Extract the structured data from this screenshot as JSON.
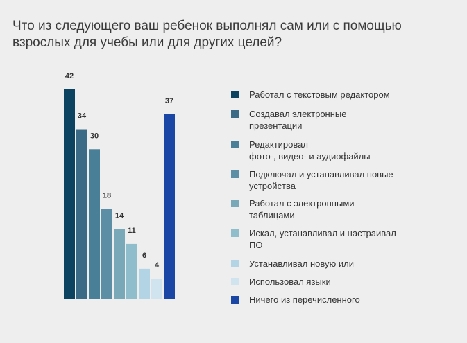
{
  "chart_data": {
    "type": "bar",
    "title": "Что из следующего ваш ребенок выполнял сам или с помощью взрослых для учебы или для других целей?",
    "xlabel": "",
    "ylabel": "",
    "ylim": [
      0,
      45
    ],
    "grid": false,
    "legend_position": "right",
    "categories": [
      "Работал с текстовым редактором",
      "Создавал электронные презентации",
      "Редактировал фото-, видео- и аудиофайлы",
      "Подключал и устанавливал новые устройства",
      "Работал с электронными таблицами",
      "Искал, устанавливал и настраивал ПО",
      "Устанавливал новую или",
      "Использовал языки",
      "Ничего из перечисленного"
    ],
    "values": [
      42,
      34,
      30,
      18,
      14,
      11,
      6,
      4,
      37
    ],
    "colors": [
      "#0c4360",
      "#3a6a85",
      "#4a7f98",
      "#5c8ea6",
      "#79a8b8",
      "#90bdcb",
      "#b2d4e4",
      "#d0e4f0",
      "#1a46a6"
    ]
  },
  "legend": [
    {
      "label_lines": [
        "Работал с текстовым редактором"
      ]
    },
    {
      "label_lines": [
        "Создавал электронные",
        "презентации"
      ]
    },
    {
      "label_lines": [
        "Редактировал",
        "фото-, видео- и аудиофайлы"
      ]
    },
    {
      "label_lines": [
        "Подключал и устанавливал новые",
        "устройства"
      ]
    },
    {
      "label_lines": [
        "Работал с электронными",
        "таблицами"
      ]
    },
    {
      "label_lines": [
        "Искал, устанавливал и настраивал",
        "ПО"
      ]
    },
    {
      "label_lines": [
        "Устанавливал новую или"
      ]
    },
    {
      "label_lines": [
        "Использовал языки"
      ]
    },
    {
      "label_lines": [
        "Ничего из перечисленного"
      ]
    }
  ]
}
